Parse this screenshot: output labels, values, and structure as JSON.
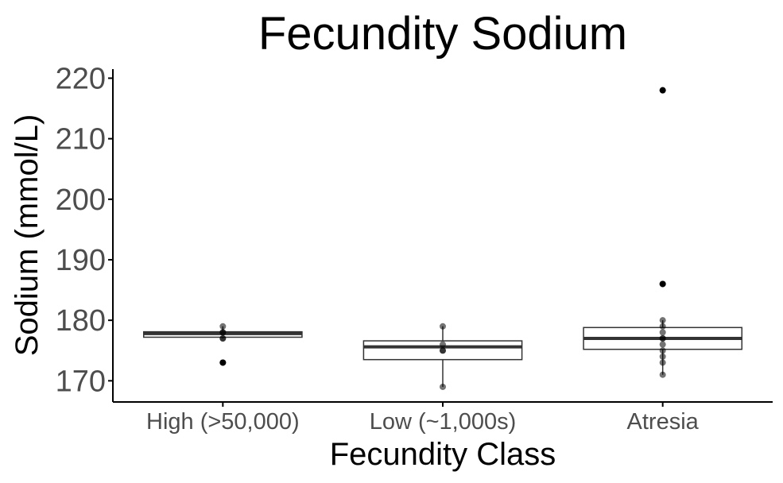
{
  "chart_data": {
    "type": "box",
    "title": "Fecundity Sodium",
    "xlabel": "Fecundity Class",
    "ylabel": "Sodium (mmol/L)",
    "categories": [
      "High (>50,000)",
      "Low (~1,000s)",
      "Atresia"
    ],
    "ylim": [
      166.5,
      221.5
    ],
    "yticks": [
      170,
      180,
      190,
      200,
      210,
      220
    ],
    "grid": false,
    "boxes": [
      {
        "category": "High (>50,000)",
        "whisker_low": 177,
        "q1": 177.2,
        "median": 177.8,
        "q3": 178.1,
        "whisker_high": 179,
        "points": [
          179,
          178,
          178,
          177,
          177,
          173
        ],
        "outliers": [
          173
        ]
      },
      {
        "category": "Low (~1,000s)",
        "whisker_low": 169,
        "q1": 173.5,
        "median": 175.6,
        "q3": 176.6,
        "whisker_high": 179,
        "points": [
          179,
          176,
          175,
          175,
          169
        ],
        "outliers": []
      },
      {
        "category": "Atresia",
        "whisker_low": 171,
        "q1": 175.2,
        "median": 177,
        "q3": 178.8,
        "whisker_high": 180,
        "points": [
          218,
          186,
          180,
          179,
          178,
          177,
          177,
          176,
          175,
          174,
          173,
          171
        ],
        "outliers": [
          218,
          186
        ]
      }
    ],
    "colors": {
      "box_line": "#333333",
      "point": "#000000",
      "axis": "#000000",
      "tick_label": "#4d4d4d"
    }
  }
}
